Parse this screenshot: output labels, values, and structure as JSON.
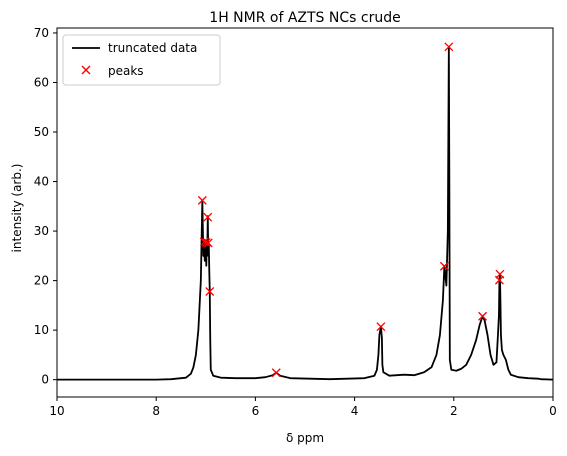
{
  "chart_data": {
    "type": "line",
    "title": "1H NMR of AZTS NCs crude",
    "xlabel": "δ ppm",
    "ylabel": "intensity (arb.)",
    "xlim": [
      10,
      0
    ],
    "ylim": [
      -3.5,
      71
    ],
    "x_inverted": true,
    "grid": false,
    "legend_position": "upper-left",
    "xticks": [
      10,
      8,
      6,
      4,
      2,
      0
    ],
    "yticks": [
      0,
      10,
      20,
      30,
      40,
      50,
      60,
      70
    ],
    "colors": {
      "line": "#000000",
      "peaks": "#ff0000"
    },
    "series": [
      {
        "name": "truncated data",
        "style": "line",
        "points": [
          [
            10,
            0
          ],
          [
            9,
            0
          ],
          [
            8,
            0
          ],
          [
            7.7,
            0.1
          ],
          [
            7.4,
            0.4
          ],
          [
            7.3,
            1.2
          ],
          [
            7.25,
            2.5
          ],
          [
            7.2,
            5
          ],
          [
            7.15,
            10
          ],
          [
            7.12,
            16
          ],
          [
            7.1,
            20
          ],
          [
            7.07,
            36.2
          ],
          [
            7.05,
            25
          ],
          [
            7.04,
            27.5
          ],
          [
            7.02,
            24
          ],
          [
            7.0,
            28
          ],
          [
            6.99,
            23
          ],
          [
            6.98,
            28
          ],
          [
            6.97,
            26
          ],
          [
            6.96,
            33
          ],
          [
            6.95,
            25
          ],
          [
            6.94,
            27.5
          ],
          [
            6.93,
            22
          ],
          [
            6.92,
            17.8
          ],
          [
            6.91,
            8
          ],
          [
            6.9,
            2
          ],
          [
            6.85,
            0.8
          ],
          [
            6.7,
            0.4
          ],
          [
            6.4,
            0.3
          ],
          [
            6.0,
            0.3
          ],
          [
            5.8,
            0.5
          ],
          [
            5.65,
            0.9
          ],
          [
            5.58,
            1.4
          ],
          [
            5.5,
            0.8
          ],
          [
            5.3,
            0.3
          ],
          [
            4.5,
            0.1
          ],
          [
            3.8,
            0.3
          ],
          [
            3.6,
            0.8
          ],
          [
            3.55,
            2
          ],
          [
            3.52,
            5
          ],
          [
            3.5,
            9
          ],
          [
            3.47,
            10.7
          ],
          [
            3.45,
            8.5
          ],
          [
            3.44,
            3
          ],
          [
            3.42,
            1.5
          ],
          [
            3.3,
            0.8
          ],
          [
            3.0,
            1.0
          ],
          [
            2.8,
            0.9
          ],
          [
            2.6,
            1.5
          ],
          [
            2.45,
            2.5
          ],
          [
            2.35,
            5
          ],
          [
            2.28,
            9
          ],
          [
            2.22,
            16
          ],
          [
            2.19,
            22.9
          ],
          [
            2.15,
            19
          ],
          [
            2.12,
            30
          ],
          [
            2.1,
            67.2
          ],
          [
            2.09,
            40
          ],
          [
            2.08,
            4
          ],
          [
            2.05,
            2
          ],
          [
            1.95,
            1.8
          ],
          [
            1.85,
            2.2
          ],
          [
            1.75,
            3
          ],
          [
            1.65,
            5
          ],
          [
            1.55,
            8
          ],
          [
            1.48,
            11
          ],
          [
            1.42,
            12.8
          ],
          [
            1.38,
            12
          ],
          [
            1.32,
            9
          ],
          [
            1.26,
            5
          ],
          [
            1.2,
            3
          ],
          [
            1.14,
            3.5
          ],
          [
            1.11,
            9
          ],
          [
            1.09,
            13
          ],
          [
            1.08,
            20.1
          ],
          [
            1.07,
            21.3
          ],
          [
            1.06,
            16
          ],
          [
            1.05,
            9
          ],
          [
            1.03,
            6
          ],
          [
            1.0,
            5
          ],
          [
            0.95,
            4
          ],
          [
            0.9,
            2
          ],
          [
            0.85,
            1
          ],
          [
            0.7,
            0.5
          ],
          [
            0.5,
            0.3
          ],
          [
            0.3,
            0.2
          ],
          [
            0.25,
            0.1
          ],
          [
            0,
            0
          ]
        ]
      },
      {
        "name": "peaks",
        "style": "marker-x",
        "points": [
          [
            7.07,
            36.2
          ],
          [
            7.03,
            27.8
          ],
          [
            6.99,
            27.7
          ],
          [
            6.96,
            32.8
          ],
          [
            6.95,
            27.6
          ],
          [
            6.92,
            17.8
          ],
          [
            5.58,
            1.4
          ],
          [
            3.47,
            10.7
          ],
          [
            2.19,
            22.9
          ],
          [
            2.1,
            67.2
          ],
          [
            1.42,
            12.8
          ],
          [
            1.08,
            20.1
          ],
          [
            1.07,
            21.3
          ]
        ]
      }
    ]
  }
}
